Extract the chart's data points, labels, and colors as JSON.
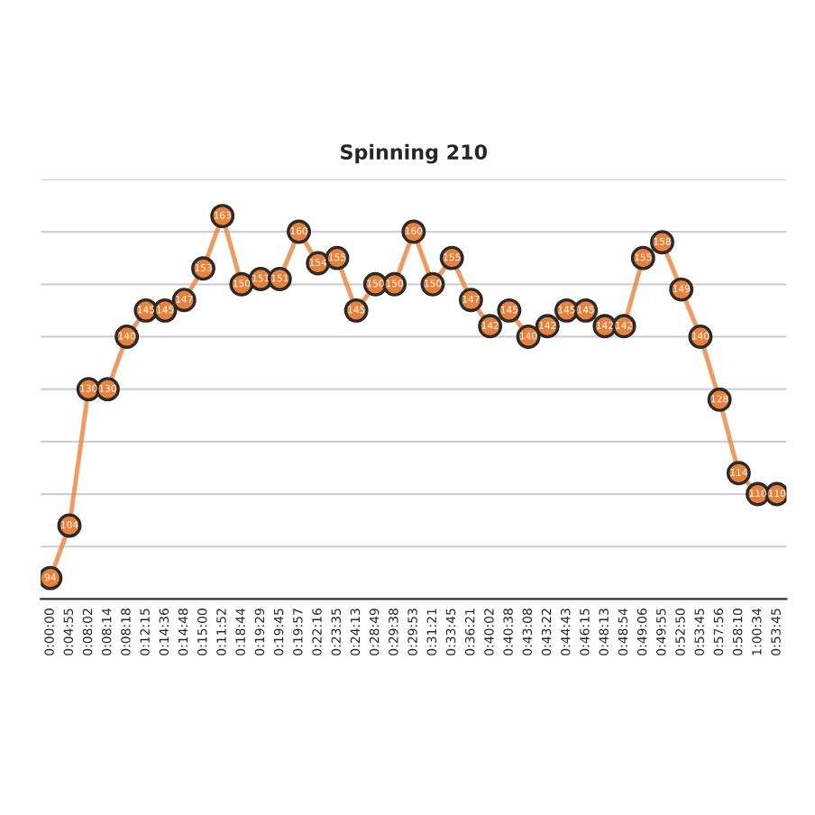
{
  "chart_data": {
    "type": "line",
    "title": "Spinning 210",
    "categories": [
      "0:00:00",
      "0:04:55",
      "0:08:02",
      "0:08:14",
      "0:08:18",
      "0:12:15",
      "0:14:36",
      "0:14:48",
      "0:15:00",
      "0:11:52",
      "0:18:44",
      "0:19:29",
      "0:19:45",
      "0:19:57",
      "0:22:16",
      "0:23:35",
      "0:24:13",
      "0:28:49",
      "0:29:38",
      "0:29:53",
      "0:31:21",
      "0:33:45",
      "0:36:21",
      "0:40:02",
      "0:40:38",
      "0:43:08",
      "0:43:22",
      "0:44:43",
      "0:46:15",
      "0:48:13",
      "0:48:54",
      "0:49:06",
      "0:49:55",
      "0:52:50",
      "0:53:45",
      "0:57:56",
      "0:58:10",
      "1:00:34",
      "0:53:45"
    ],
    "series": [
      {
        "color": "#e8823a",
        "values": [
          94,
          104,
          130,
          130,
          140,
          145,
          145,
          147,
          153,
          163,
          150,
          151,
          151,
          160,
          154,
          155,
          145,
          150,
          150,
          160,
          150,
          155,
          147,
          142,
          145,
          140,
          142,
          145,
          145,
          142,
          142,
          155,
          158,
          149,
          140,
          128,
          114,
          110,
          110
        ]
      }
    ],
    "ylim": [
      90,
      170
    ],
    "yticks": [
      {
        "value": 90,
        "label": null
      },
      {
        "value": 100,
        "label": null
      },
      {
        "value": 110,
        "label": null
      },
      {
        "value": 120,
        "label": null
      },
      {
        "value": 130,
        "label": null
      },
      {
        "value": 140,
        "label": null
      },
      {
        "value": 150,
        "label": null
      },
      {
        "value": 160,
        "label": null
      },
      {
        "value": 170,
        "label": null
      }
    ],
    "tick_labels": "x",
    "grid": "y",
    "marker": "circle",
    "line_style": "solid",
    "data_labels": true
  }
}
